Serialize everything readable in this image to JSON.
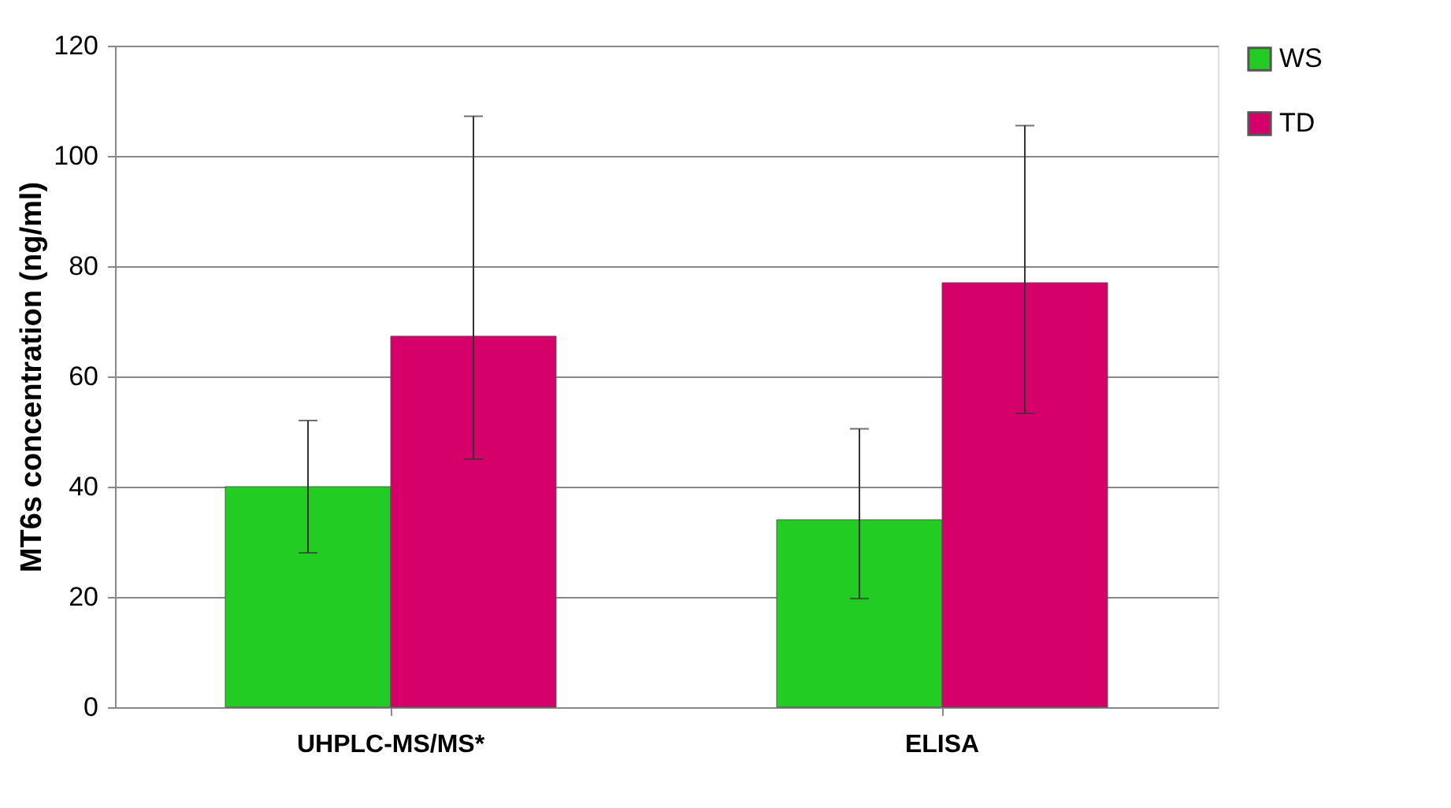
{
  "chart_data": {
    "type": "bar",
    "ylabel": "MT6s concentration (ng/ml)",
    "categories": [
      "UHPLC-MS/MS*",
      "ELISA"
    ],
    "series": [
      {
        "name": "WS",
        "color": "#22cc22",
        "values": [
          40,
          34
        ],
        "errors": [
          [
            28,
            52
          ],
          [
            19.7,
            50.5
          ]
        ]
      },
      {
        "name": "TD",
        "color": "#d6006b",
        "values": [
          67.3,
          77
        ],
        "errors": [
          [
            45,
            107.2
          ],
          [
            53.3,
            105.5
          ]
        ]
      }
    ],
    "ylim": [
      0,
      120
    ],
    "yticks": [
      0,
      20,
      40,
      60,
      80,
      100,
      120
    ],
    "grid": "y",
    "legend": "right"
  }
}
